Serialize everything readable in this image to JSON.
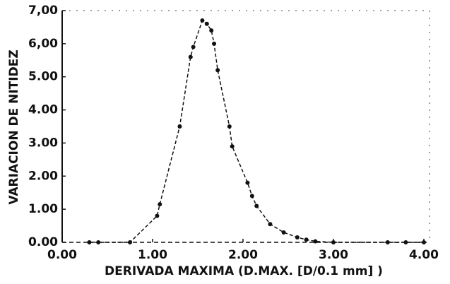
{
  "chart_data": {
    "type": "scatter",
    "x_label": "DERIVADA MAXIMA (D.MAX. [D/0.1 mm] )",
    "y_label": "VARIACION DE NITIDEZ",
    "xlim": [
      0,
      4
    ],
    "ylim": [
      0,
      7
    ],
    "xticks": [
      {
        "value": 0,
        "label": "0.00"
      },
      {
        "value": 1,
        "label": "1.00"
      },
      {
        "value": 2,
        "label": "2.00"
      },
      {
        "value": 3,
        "label": "3.00"
      },
      {
        "value": 4,
        "label": "4.00"
      }
    ],
    "yticks": [
      {
        "value": 0,
        "label": "0.00"
      },
      {
        "value": 1,
        "label": "1.00"
      },
      {
        "value": 2,
        "label": "2.00"
      },
      {
        "value": 3,
        "label": "3.00"
      },
      {
        "value": 4,
        "label": "4.00"
      },
      {
        "value": 5,
        "label": "5.00"
      },
      {
        "value": 6,
        "label": "6,00"
      },
      {
        "value": 7,
        "label": "7,00"
      }
    ],
    "grid": false,
    "series": [
      {
        "color": "#111111",
        "dashed_line": true,
        "x": [
          0.3,
          0.4,
          0.75,
          1.05,
          1.08,
          1.3,
          1.42,
          1.45,
          1.55,
          1.6,
          1.65,
          1.68,
          1.72,
          1.85,
          1.88,
          2.05,
          2.1,
          2.15,
          2.3,
          2.45,
          2.6,
          2.7,
          2.8,
          3.0,
          3.6,
          3.8,
          4.0
        ],
        "values": [
          0,
          0,
          0,
          0.8,
          1.15,
          3.5,
          5.6,
          5.9,
          6.7,
          6.6,
          6.4,
          6.0,
          5.2,
          3.5,
          2.9,
          1.8,
          1.4,
          1.1,
          0.55,
          0.3,
          0.15,
          0.08,
          0.03,
          0,
          0,
          0,
          0
        ]
      }
    ]
  }
}
